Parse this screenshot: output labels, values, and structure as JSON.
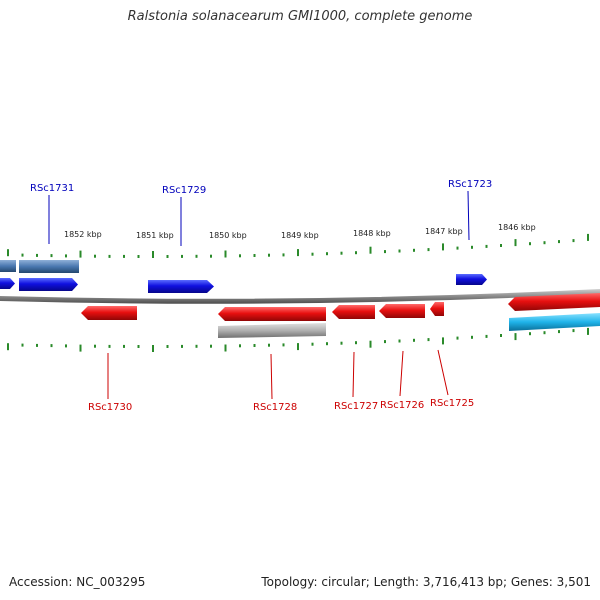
{
  "title": "Ralstonia solanacearum GMI1000, complete genome",
  "footer": {
    "accession": "Accession: NC_003295",
    "topology": "Topology: circular; Length: 3,716,413 bp; Genes: 3,501"
  },
  "colors": {
    "forward_gene": "#1515d8",
    "reverse_gene": "#e01010",
    "forward_other": "#4a7db4",
    "reverse_other": "#a8a8a8",
    "cyan_feature": "#22b8e8",
    "tick": "#2a8a2a",
    "backbone": "#888888",
    "forward_label": "#0000bb",
    "reverse_label": "#cc0000"
  },
  "scale_ticks": [
    "1852 kbp",
    "1851 kbp",
    "1850 kbp",
    "1849 kbp",
    "1848 kbp",
    "1847 kbp",
    "1846 kbp"
  ],
  "gene_labels": {
    "forward": [
      "RSc1731",
      "RSc1729",
      "RSc1723"
    ],
    "reverse": [
      "RSc1730",
      "RSc1728",
      "RSc1727",
      "RSc1726",
      "RSc1725"
    ]
  }
}
